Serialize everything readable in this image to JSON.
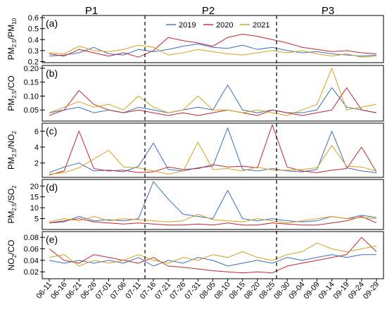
{
  "figure": {
    "period_labels": [
      "P1",
      "P2",
      "P3"
    ],
    "legend": [
      "2019",
      "2020",
      "2021"
    ],
    "colors": {
      "2019": "#3a6fc2",
      "2020": "#c4262e",
      "2021": "#d6a21c"
    }
  },
  "chart_data": [
    {
      "type": "line",
      "panel_label": "(a)",
      "ylabel": [
        "PM",
        "2.5",
        "/PM",
        "10"
      ],
      "ylim": [
        0.19,
        0.62
      ],
      "yticks": [
        0.2,
        0.3,
        0.4,
        0.5,
        0.6
      ],
      "ytick_labels": [
        "0.2",
        "0.3",
        "0.4",
        "0.5",
        "0.6"
      ],
      "x": [
        "06-11",
        "06-16",
        "06-21",
        "06-26",
        "07-01",
        "07-06",
        "07-11",
        "07-16",
        "07-21",
        "07-26",
        "07-31",
        "08-05",
        "08-10",
        "08-15",
        "08-20",
        "08-25",
        "08-30",
        "09-04",
        "09-09",
        "09-14",
        "09-19",
        "09-24",
        "09-29"
      ],
      "series": [
        {
          "name": "2019",
          "values": [
            0.25,
            0.26,
            0.28,
            0.33,
            0.27,
            0.26,
            0.31,
            0.29,
            0.31,
            0.34,
            0.36,
            0.33,
            0.32,
            0.35,
            0.31,
            0.33,
            0.3,
            0.28,
            0.29,
            0.27,
            0.26,
            0.25,
            0.26
          ]
        },
        {
          "name": "2020",
          "values": [
            0.27,
            0.25,
            0.31,
            0.28,
            0.25,
            0.28,
            0.24,
            0.3,
            0.42,
            0.39,
            0.37,
            0.34,
            0.42,
            0.45,
            0.43,
            0.4,
            0.37,
            0.33,
            0.31,
            0.29,
            0.3,
            0.28,
            0.27
          ]
        },
        {
          "name": "2021",
          "values": [
            0.28,
            0.27,
            0.34,
            0.3,
            0.29,
            0.31,
            0.35,
            0.33,
            0.26,
            0.28,
            0.31,
            0.29,
            0.27,
            0.26,
            0.28,
            0.3,
            0.28,
            0.3,
            0.27,
            0.25,
            0.27,
            0.24,
            0.25
          ]
        }
      ]
    },
    {
      "type": "line",
      "panel_label": "(b)",
      "ylabel": [
        "PM",
        "2.5",
        "/CO",
        ""
      ],
      "ylim": [
        0.01,
        0.21
      ],
      "yticks": [
        0.05,
        0.1,
        0.15,
        0.2
      ],
      "ytick_labels": [
        "0.05",
        "0.10",
        "0.15",
        "0.20"
      ],
      "x": [
        "06-11",
        "06-16",
        "06-21",
        "06-26",
        "07-01",
        "07-06",
        "07-11",
        "07-16",
        "07-21",
        "07-26",
        "07-31",
        "08-05",
        "08-10",
        "08-15",
        "08-20",
        "08-25",
        "08-30",
        "09-04",
        "09-09",
        "09-14",
        "09-19",
        "09-24",
        "09-29"
      ],
      "series": [
        {
          "name": "2019",
          "values": [
            0.04,
            0.05,
            0.06,
            0.04,
            0.05,
            0.04,
            0.06,
            0.05,
            0.04,
            0.05,
            0.06,
            0.05,
            0.14,
            0.05,
            0.04,
            0.05,
            0.04,
            0.04,
            0.05,
            0.13,
            0.06,
            0.05,
            0.04
          ]
        },
        {
          "name": "2020",
          "values": [
            0.03,
            0.05,
            0.12,
            0.07,
            0.05,
            0.04,
            0.05,
            0.04,
            0.03,
            0.04,
            0.03,
            0.04,
            0.05,
            0.04,
            0.03,
            0.05,
            0.04,
            0.03,
            0.04,
            0.05,
            0.13,
            0.05,
            0.04
          ]
        },
        {
          "name": "2021",
          "values": [
            0.04,
            0.06,
            0.08,
            0.06,
            0.07,
            0.05,
            0.1,
            0.06,
            0.04,
            0.05,
            0.1,
            0.05,
            0.05,
            0.04,
            0.05,
            0.04,
            0.03,
            0.05,
            0.07,
            0.2,
            0.05,
            0.06,
            0.07
          ]
        }
      ]
    },
    {
      "type": "line",
      "panel_label": "(c)",
      "ylabel": [
        "PM",
        "2.5",
        "/NO",
        "2"
      ],
      "ylim": [
        0.2,
        7.0
      ],
      "yticks": [
        2,
        4,
        6
      ],
      "ytick_labels": [
        "2",
        "4",
        "6"
      ],
      "x": [
        "06-11",
        "06-16",
        "06-21",
        "06-26",
        "07-01",
        "07-06",
        "07-11",
        "07-16",
        "07-21",
        "07-26",
        "07-31",
        "08-05",
        "08-10",
        "08-15",
        "08-20",
        "08-25",
        "08-30",
        "09-04",
        "09-09",
        "09-14",
        "09-19",
        "09-24",
        "09-29"
      ],
      "series": [
        {
          "name": "2019",
          "values": [
            0.8,
            1.5,
            2.0,
            1.0,
            1.1,
            0.9,
            1.6,
            4.5,
            1.2,
            1.0,
            1.4,
            1.6,
            6.4,
            1.2,
            1.0,
            1.3,
            1.0,
            0.9,
            1.2,
            6.0,
            1.4,
            1.0,
            0.8
          ]
        },
        {
          "name": "2020",
          "values": [
            0.5,
            1.0,
            6.0,
            1.3,
            1.0,
            1.1,
            0.8,
            0.9,
            1.5,
            1.2,
            1.3,
            1.8,
            1.5,
            1.6,
            1.4,
            6.8,
            1.5,
            1.0,
            0.8,
            1.1,
            1.3,
            4.0,
            0.9
          ]
        },
        {
          "name": "2021",
          "values": [
            0.6,
            0.8,
            1.4,
            2.5,
            3.6,
            1.5,
            1.4,
            1.0,
            0.6,
            1.0,
            4.6,
            1.2,
            1.3,
            1.0,
            1.5,
            1.1,
            1.1,
            1.2,
            1.4,
            4.2,
            1.6,
            1.5,
            1.0
          ]
        }
      ]
    },
    {
      "type": "line",
      "panel_label": "(d)",
      "ylabel": [
        "PM",
        "2.5",
        "/SO",
        "2"
      ],
      "ylim": [
        0,
        23
      ],
      "yticks": [
        5,
        10,
        15,
        20
      ],
      "ytick_labels": [
        "5",
        "10",
        "15",
        "20"
      ],
      "x": [
        "06-11",
        "06-16",
        "06-21",
        "06-26",
        "07-01",
        "07-06",
        "07-11",
        "07-16",
        "07-21",
        "07-26",
        "07-31",
        "08-05",
        "08-10",
        "08-15",
        "08-20",
        "08-25",
        "08-30",
        "09-04",
        "09-09",
        "09-14",
        "09-19",
        "09-24",
        "09-29"
      ],
      "series": [
        {
          "name": "2019",
          "values": [
            3.0,
            3.5,
            6.0,
            4.0,
            4.5,
            4.0,
            5.0,
            22.0,
            14.0,
            7.0,
            6.0,
            5.0,
            18.0,
            5.0,
            4.0,
            5.0,
            4.0,
            3.5,
            4.0,
            6.0,
            5.0,
            6.5,
            5.5
          ]
        },
        {
          "name": "2020",
          "values": [
            3.0,
            4.0,
            5.0,
            3.5,
            3.0,
            2.5,
            3.0,
            2.5,
            2.0,
            2.0,
            2.5,
            2.0,
            3.0,
            2.0,
            2.0,
            3.0,
            2.5,
            2.0,
            2.0,
            3.0,
            4.0,
            6.0,
            3.0
          ]
        },
        {
          "name": "2021",
          "values": [
            3.5,
            5.0,
            4.0,
            6.0,
            4.0,
            5.0,
            4.5,
            4.0,
            3.5,
            4.0,
            7.0,
            4.5,
            4.0,
            3.5,
            5.0,
            4.0,
            3.0,
            4.0,
            5.0,
            6.0,
            5.0,
            5.5,
            5.0
          ]
        }
      ]
    },
    {
      "type": "line",
      "panel_label": "(e)",
      "ylabel": [
        "NO",
        "2",
        "/CO",
        ""
      ],
      "ylim": [
        0.008,
        0.09
      ],
      "yticks": [
        0.02,
        0.04,
        0.06,
        0.08
      ],
      "ytick_labels": [
        "0.02",
        "0.04",
        "0.06",
        "0.08"
      ],
      "x": [
        "06-11",
        "06-16",
        "06-21",
        "06-26",
        "07-01",
        "07-06",
        "07-11",
        "07-16",
        "07-21",
        "07-26",
        "07-31",
        "08-05",
        "08-10",
        "08-15",
        "08-20",
        "08-25",
        "08-30",
        "09-04",
        "09-09",
        "09-14",
        "09-19",
        "09-24",
        "09-29"
      ],
      "series": [
        {
          "name": "2019",
          "values": [
            0.04,
            0.035,
            0.04,
            0.035,
            0.04,
            0.035,
            0.045,
            0.03,
            0.04,
            0.035,
            0.045,
            0.04,
            0.03,
            0.035,
            0.04,
            0.035,
            0.045,
            0.04,
            0.045,
            0.05,
            0.045,
            0.05,
            0.05
          ]
        },
        {
          "name": "2020",
          "values": [
            0.06,
            0.04,
            0.035,
            0.05,
            0.045,
            0.04,
            0.035,
            0.045,
            0.03,
            0.028,
            0.025,
            0.022,
            0.02,
            0.018,
            0.02,
            0.018,
            0.03,
            0.035,
            0.04,
            0.045,
            0.05,
            0.08,
            0.055
          ]
        },
        {
          "name": "2021",
          "values": [
            0.045,
            0.05,
            0.03,
            0.04,
            0.035,
            0.04,
            0.05,
            0.04,
            0.035,
            0.045,
            0.04,
            0.05,
            0.045,
            0.055,
            0.045,
            0.04,
            0.05,
            0.055,
            0.07,
            0.06,
            0.055,
            0.06,
            0.065
          ]
        }
      ]
    }
  ]
}
